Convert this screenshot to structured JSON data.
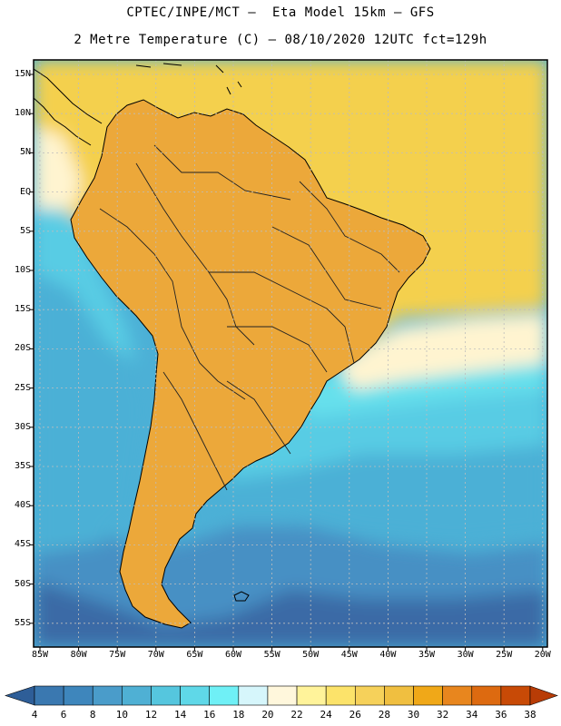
{
  "header": {
    "line1": "CPTEC/INPE/MCT –  Eta Model 15km – GFS",
    "line2": "2 Metre Temperature (C) – 08/10/2020 12UTC fct=129h"
  },
  "axes": {
    "lat_labels": [
      "15N",
      "10N",
      "5N",
      "EQ",
      "5S",
      "10S",
      "15S",
      "20S",
      "25S",
      "30S",
      "35S",
      "40S",
      "45S",
      "50S",
      "55S"
    ],
    "lon_labels": [
      "85W",
      "80W",
      "75W",
      "70W",
      "65W",
      "60W",
      "55W",
      "50W",
      "45W",
      "40W",
      "35W",
      "30W",
      "25W",
      "20W"
    ]
  },
  "colorbar": {
    "labels": [
      "4",
      "6",
      "8",
      "10",
      "12",
      "14",
      "16",
      "18",
      "20",
      "22",
      "24",
      "26",
      "28",
      "30",
      "32",
      "34",
      "36",
      "38"
    ],
    "colors": [
      "#3a78b0",
      "#3e86bc",
      "#4a9cca",
      "#4fb0d4",
      "#55c6de",
      "#5fd8e8",
      "#6ff0f6",
      "#d6f6fb",
      "#fff7dc",
      "#fff39a",
      "#fce36a",
      "#f6d15a",
      "#f0bf40",
      "#f0a818",
      "#e8861e",
      "#dd6a10",
      "#c84a06"
    ],
    "under_color": "#2e5e98",
    "over_color": "#b83c06"
  },
  "map_colors": {
    "ocean_cold": "#3a6aa6",
    "ocean_cool": "#4690c4",
    "ocean_mid": "#4cb0d6",
    "ocean_warm": "#58cce4",
    "ocean_warmer": "#66e0ec",
    "cream": "#fff4d0",
    "tropical": "#f4d04e",
    "land_warm": "#eca83a",
    "land_hot": "#dc7c22",
    "land_hottest": "#c4561a",
    "andes": "#8cd8ec",
    "grid": "#bdbdbd",
    "coast": "#000000"
  }
}
